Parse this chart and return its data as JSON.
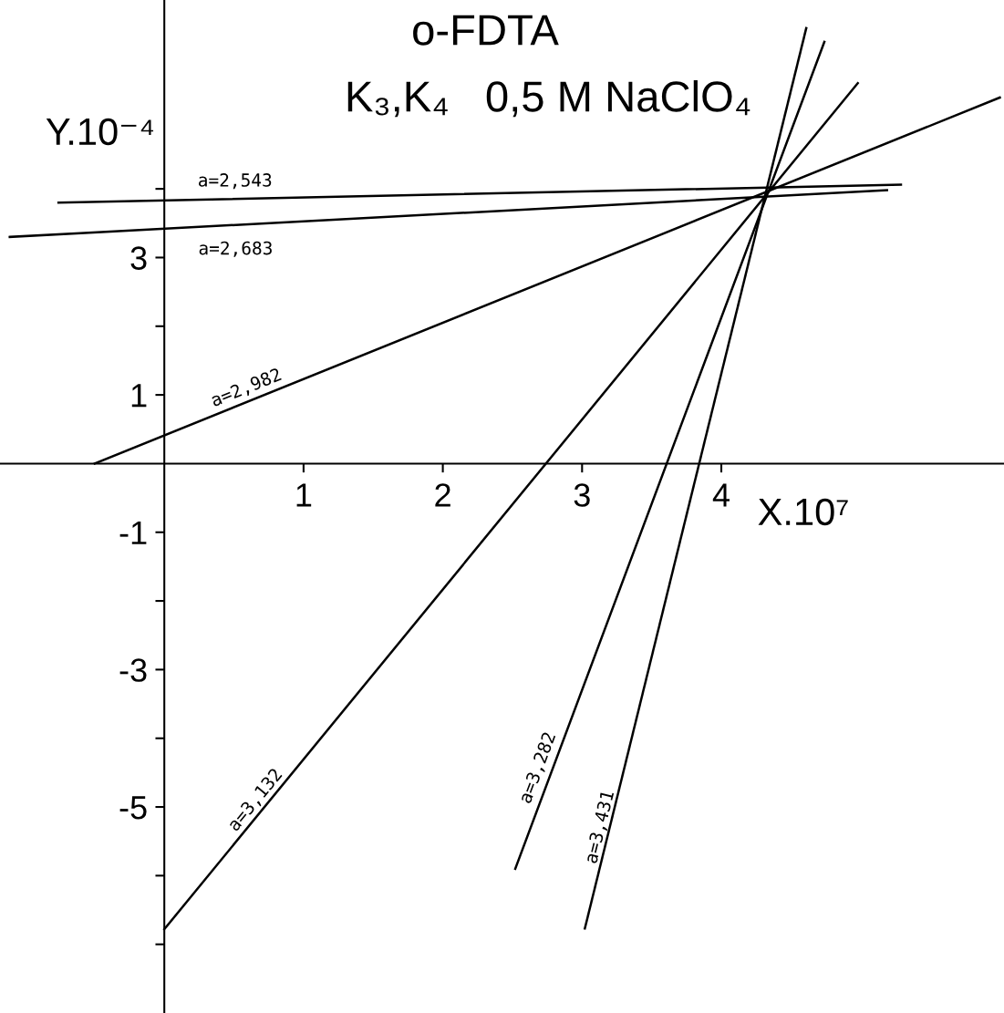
{
  "chart_data": {
    "type": "line",
    "title": "o-FDTA",
    "subtitle": "K₃,K₄   0,5 M NaClO₄",
    "xlabel": "X.10⁷",
    "ylabel": "Y.10⁻⁴",
    "series": [
      {
        "name": "a=2,543",
        "color": "#000000",
        "x": [
          -0.76,
          5.29
        ],
        "values": [
          3.8,
          4.06
        ]
      },
      {
        "name": "a=2,683",
        "color": "#000000",
        "x": [
          -1.11,
          5.19
        ],
        "values": [
          3.3,
          3.98
        ]
      },
      {
        "name": "a=2,982",
        "color": "#000000",
        "x": [
          -0.5,
          6.0
        ],
        "values": [
          0,
          5.33
        ]
      },
      {
        "name": "a=3,132",
        "color": "#000000",
        "x": [
          0,
          4.98
        ],
        "values": [
          -6.78,
          5.54
        ]
      },
      {
        "name": "a=3,282",
        "color": "#000000",
        "x": [
          2.52,
          4.74
        ],
        "values": [
          -5.9,
          6.14
        ]
      },
      {
        "name": "a=3,431",
        "color": "#000000",
        "x": [
          3.02,
          4.61
        ],
        "values": [
          -6.77,
          6.34
        ]
      }
    ],
    "xlim": [
      -1.18,
      6.03
    ],
    "ylim": [
      -8,
      6.75
    ],
    "xticks": [
      1,
      2,
      3,
      4
    ],
    "yticks": [
      {
        "value": 4,
        "label": null
      },
      3,
      {
        "value": 2,
        "label": null
      },
      1,
      -1,
      {
        "value": -2,
        "label": null
      },
      -3,
      {
        "value": -4,
        "label": null
      },
      -5,
      {
        "value": -6,
        "label": null
      },
      {
        "value": -7,
        "label": null
      }
    ]
  }
}
